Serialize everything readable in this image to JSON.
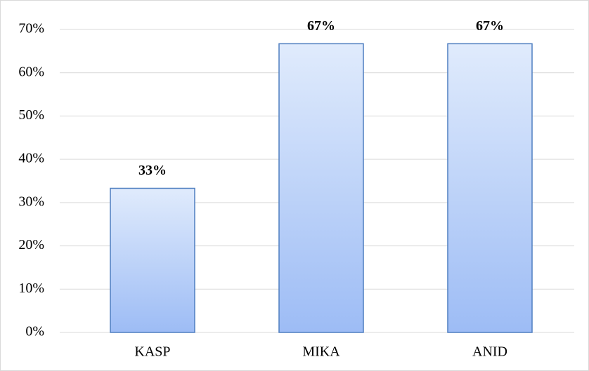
{
  "chart_data": {
    "type": "bar",
    "categories": [
      "KASP",
      "MIKA",
      "ANID"
    ],
    "values": [
      33.3,
      66.7,
      66.7
    ],
    "value_labels": [
      "33%",
      "67%",
      "67%"
    ],
    "color": [
      "#e0ebfc",
      "#9dbcf5"
    ],
    "edge_color": "#4f7ec0",
    "ylim": [
      0,
      70
    ],
    "yticks": [
      {
        "value": 0,
        "label": "0%"
      },
      {
        "value": 10,
        "label": "10%"
      },
      {
        "value": 20,
        "label": "20%"
      },
      {
        "value": 30,
        "label": "30%"
      },
      {
        "value": 40,
        "label": "40%"
      },
      {
        "value": 50,
        "label": "50%"
      },
      {
        "value": 60,
        "label": "60%"
      },
      {
        "value": 70,
        "label": "70%"
      }
    ],
    "grid": true
  }
}
